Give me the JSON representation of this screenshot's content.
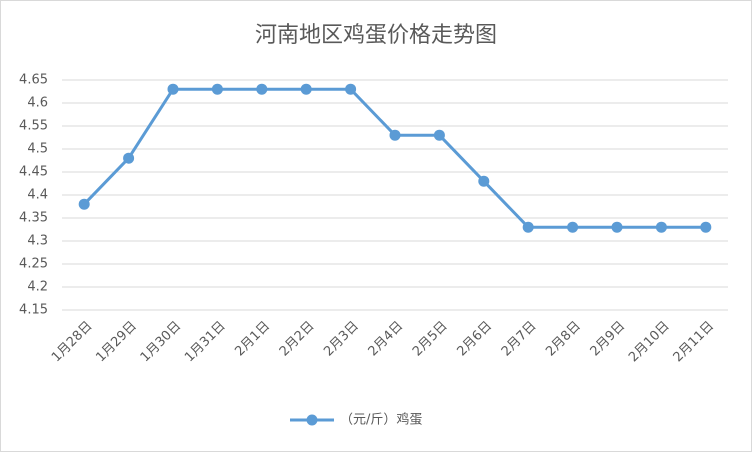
{
  "chart_data": {
    "type": "line",
    "title": "河南地区鸡蛋价格走势图",
    "categories": [
      "1月28日",
      "1月29日",
      "1月30日",
      "1月31日",
      "2月1日",
      "2月2日",
      "2月3日",
      "2月4日",
      "2月5日",
      "2月6日",
      "2月7日",
      "2月8日",
      "2月9日",
      "2月10日",
      "2月11日"
    ],
    "series": [
      {
        "name": "（元/斤）鸡蛋",
        "color": "#5b9bd5",
        "values": [
          4.38,
          4.48,
          4.63,
          4.63,
          4.63,
          4.63,
          4.63,
          4.53,
          4.53,
          4.43,
          4.33,
          4.33,
          4.33,
          4.33,
          4.33
        ]
      }
    ],
    "ylim": [
      4.15,
      4.65
    ],
    "yticks": [
      4.15,
      4.2,
      4.25,
      4.3,
      4.35,
      4.4,
      4.45,
      4.5,
      4.55,
      4.6,
      4.65
    ],
    "grid": true,
    "legend": "bottom"
  }
}
